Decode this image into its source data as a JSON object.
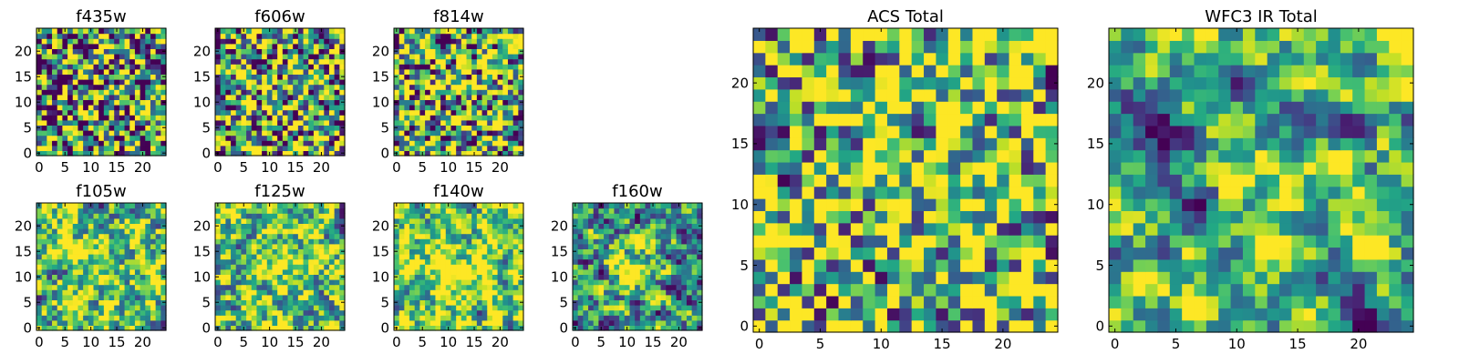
{
  "figure": {
    "background": "#ffffff",
    "colormap": "viridis"
  },
  "chart_data": [
    {
      "type": "heatmap",
      "title": "f435w",
      "shape": [
        25,
        25
      ],
      "x_ticks": [
        "0",
        "5",
        "10",
        "15",
        "20"
      ],
      "y_ticks": [
        "0",
        "5",
        "10",
        "15",
        "20"
      ],
      "xlim": [
        -0.5,
        24.5
      ],
      "ylim": [
        -0.5,
        24.5
      ],
      "origin": "lower",
      "grid": false,
      "colorbar": false,
      "seed": 11,
      "bias": 0.05,
      "smooth": 0.0,
      "sharpness": 1.6,
      "blobs": []
    },
    {
      "type": "heatmap",
      "title": "f606w",
      "shape": [
        25,
        25
      ],
      "x_ticks": [
        "0",
        "5",
        "10",
        "15",
        "20"
      ],
      "y_ticks": [
        "0",
        "5",
        "10",
        "15",
        "20"
      ],
      "xlim": [
        -0.5,
        24.5
      ],
      "ylim": [
        -0.5,
        24.5
      ],
      "origin": "lower",
      "grid": false,
      "colorbar": false,
      "seed": 23,
      "bias": 0.08,
      "smooth": 0.1,
      "sharpness": 1.6,
      "blobs": [
        [
          10,
          12,
          3.5,
          0.08
        ]
      ]
    },
    {
      "type": "heatmap",
      "title": "f814w",
      "shape": [
        25,
        25
      ],
      "x_ticks": [
        "0",
        "5",
        "10",
        "15",
        "20"
      ],
      "y_ticks": [
        "0",
        "5",
        "10",
        "15",
        "20"
      ],
      "xlim": [
        -0.5,
        24.5
      ],
      "ylim": [
        -0.5,
        24.5
      ],
      "origin": "lower",
      "grid": false,
      "colorbar": false,
      "seed": 37,
      "bias": 0.1,
      "smooth": 0.1,
      "sharpness": 1.6,
      "blobs": [
        [
          12,
          13,
          4.0,
          0.08
        ]
      ]
    },
    {
      "type": "heatmap",
      "title": "f105w",
      "shape": [
        25,
        25
      ],
      "x_ticks": [
        "0",
        "5",
        "10",
        "15",
        "20"
      ],
      "y_ticks": [
        "0",
        "5",
        "10",
        "15",
        "20"
      ],
      "xlim": [
        -0.5,
        24.5
      ],
      "ylim": [
        -0.5,
        24.5
      ],
      "origin": "lower",
      "grid": false,
      "colorbar": false,
      "seed": 41,
      "bias": 0.18,
      "smooth": 0.55,
      "sharpness": 1.7,
      "blobs": [
        [
          13,
          12,
          4.0,
          0.15
        ]
      ]
    },
    {
      "type": "heatmap",
      "title": "f125w",
      "shape": [
        25,
        25
      ],
      "x_ticks": [
        "0",
        "5",
        "10",
        "15",
        "20"
      ],
      "y_ticks": [
        "0",
        "5",
        "10",
        "15",
        "20"
      ],
      "xlim": [
        -0.5,
        24.5
      ],
      "ylim": [
        -0.5,
        24.5
      ],
      "origin": "lower",
      "grid": false,
      "colorbar": false,
      "seed": 53,
      "bias": 0.2,
      "smooth": 0.55,
      "sharpness": 1.7,
      "blobs": [
        [
          14,
          12,
          4.0,
          0.15
        ]
      ]
    },
    {
      "type": "heatmap",
      "title": "f140w",
      "shape": [
        25,
        25
      ],
      "x_ticks": [
        "0",
        "5",
        "10",
        "15",
        "20"
      ],
      "y_ticks": [
        "0",
        "5",
        "10",
        "15",
        "20"
      ],
      "xlim": [
        -0.5,
        24.5
      ],
      "ylim": [
        -0.5,
        24.5
      ],
      "origin": "lower",
      "grid": false,
      "colorbar": false,
      "seed": 67,
      "bias": 0.25,
      "smooth": 0.6,
      "sharpness": 1.7,
      "blobs": [
        [
          13,
          11,
          4.0,
          0.18
        ]
      ]
    },
    {
      "type": "heatmap",
      "title": "f160w",
      "shape": [
        25,
        25
      ],
      "x_ticks": [
        "0",
        "5",
        "10",
        "15",
        "20"
      ],
      "y_ticks": [
        "0",
        "5",
        "10",
        "15",
        "20"
      ],
      "xlim": [
        -0.5,
        24.5
      ],
      "ylim": [
        -0.5,
        24.5
      ],
      "origin": "lower",
      "grid": false,
      "colorbar": false,
      "seed": 71,
      "bias": 0.0,
      "smooth": 0.55,
      "sharpness": 1.7,
      "blobs": [
        [
          12,
          12,
          3.0,
          0.3
        ],
        [
          23,
          23,
          2.5,
          0.25
        ]
      ]
    },
    {
      "type": "heatmap",
      "title": "ACS Total",
      "shape": [
        25,
        25
      ],
      "x_ticks": [
        "0",
        "5",
        "10",
        "15",
        "20"
      ],
      "y_ticks": [
        "0",
        "5",
        "10",
        "15",
        "20"
      ],
      "xlim": [
        -0.5,
        24.5
      ],
      "ylim": [
        -0.5,
        24.5
      ],
      "origin": "lower",
      "grid": false,
      "colorbar": false,
      "seed": 89,
      "bias": 0.22,
      "smooth": 0.3,
      "sharpness": 1.9,
      "blobs": [
        [
          15,
          13,
          6.0,
          0.12
        ],
        [
          15,
          24,
          3.0,
          0.2
        ]
      ]
    },
    {
      "type": "heatmap",
      "title": "WFC3 IR Total",
      "shape": [
        25,
        25
      ],
      "x_ticks": [
        "0",
        "5",
        "10",
        "15",
        "20"
      ],
      "y_ticks": [
        "0",
        "5",
        "10",
        "15",
        "20"
      ],
      "xlim": [
        -0.5,
        24.5
      ],
      "ylim": [
        -0.5,
        24.5
      ],
      "origin": "lower",
      "grid": false,
      "colorbar": false,
      "seed": 97,
      "bias": 0.12,
      "smooth": 0.7,
      "sharpness": 1.9,
      "blobs": [
        [
          12,
          12,
          4.0,
          0.2
        ],
        [
          23,
          24,
          3.0,
          0.35
        ],
        [
          2,
          15,
          2.5,
          -0.45
        ],
        [
          7,
          10,
          1.8,
          -0.45
        ],
        [
          21,
          0,
          1.6,
          -0.5
        ]
      ]
    }
  ]
}
